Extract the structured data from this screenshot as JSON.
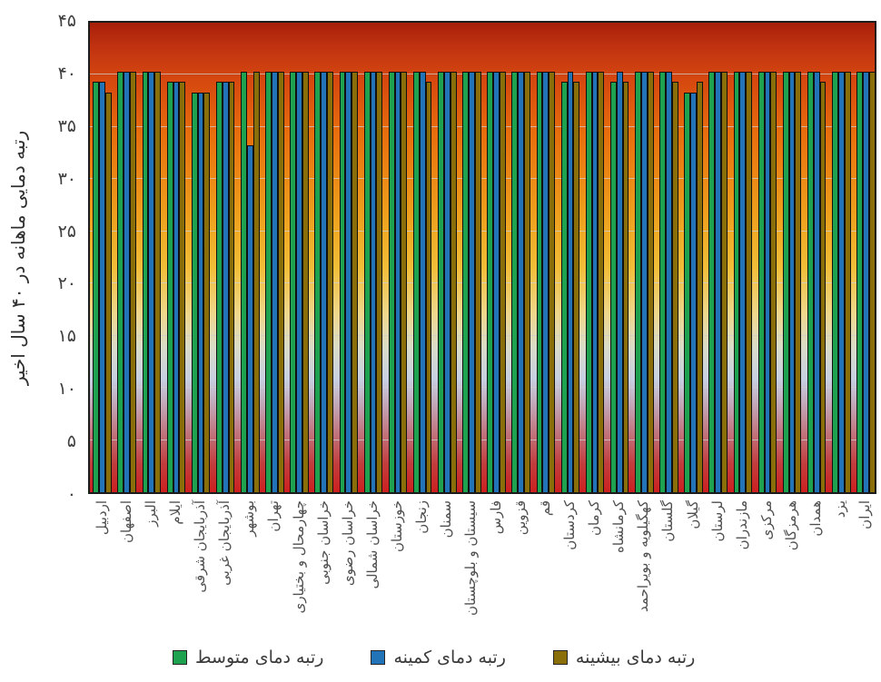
{
  "chart_data": {
    "type": "bar",
    "title": "",
    "xlabel": "",
    "ylabel": "رتبه دمایی ماهانه در ۴۰ سال اخیر",
    "ylim": [
      0,
      45
    ],
    "grid": "horizontal-light-gray",
    "legend_position": "bottom",
    "plot_background": "vertical heat gradient: dark red, orange, yellow, pale yellow, pale blue-gray, mauve, rose, red",
    "background_gradient_stops": [
      "#a81f09",
      "#d5470f",
      "#e86f0d",
      "#eea01d",
      "#f2bd37",
      "#efd78c",
      "#dadcc8",
      "#c7d0e2",
      "#c2a2b2",
      "#c17078",
      "#cd2020"
    ],
    "y_ticks": [
      {
        "value": 45,
        "label": "۴۵"
      },
      {
        "value": 40,
        "label": "۴۰"
      },
      {
        "value": 35,
        "label": "۳۵"
      },
      {
        "value": 30,
        "label": "۳۰"
      },
      {
        "value": 25,
        "label": "۲۵"
      },
      {
        "value": 20,
        "label": "۲۰"
      },
      {
        "value": 15,
        "label": "۱۵"
      },
      {
        "value": 10,
        "label": "۱۰"
      },
      {
        "value": 5,
        "label": "۵"
      },
      {
        "value": 0,
        "label": "۰"
      }
    ],
    "categories": [
      "اردبیل",
      "اصفهان",
      "البرز",
      "ایلام",
      "آذربایجان شرقی",
      "آذربایجان غربی",
      "بوشهر",
      "تهران",
      "چهارمحال و بختیاری",
      "خراسان جنوبی",
      "خراسان رضوی",
      "خراسان شمالی",
      "خوزستان",
      "زنجان",
      "سمنان",
      "سیستان و بلوچستان",
      "فارس",
      "قزوین",
      "قم",
      "کردستان",
      "کرمان",
      "کرمانشاه",
      "کهگیلویه و بویراحمد",
      "گلستان",
      "گیلان",
      "لرستان",
      "مازندران",
      "مرکزی",
      "هرمزگان",
      "همدان",
      "یزد",
      "ایران"
    ],
    "series": [
      {
        "name": "رتبه دمای متوسط",
        "color": "#1fa24f",
        "values": [
          39,
          40,
          40,
          39,
          38,
          39,
          40,
          40,
          40,
          40,
          40,
          40,
          40,
          40,
          40,
          40,
          40,
          40,
          40,
          39,
          40,
          39,
          40,
          40,
          38,
          40,
          40,
          40,
          40,
          40,
          40,
          40
        ]
      },
      {
        "name": "رتبه دمای کمینه",
        "color": "#2273b8",
        "values": [
          39,
          40,
          40,
          39,
          38,
          39,
          33,
          40,
          40,
          40,
          40,
          40,
          40,
          40,
          40,
          40,
          40,
          40,
          40,
          40,
          40,
          40,
          40,
          40,
          38,
          40,
          40,
          40,
          40,
          40,
          40,
          40
        ]
      },
      {
        "name": "رتبه دمای بیشینه",
        "color": "#8a6e0a",
        "values": [
          38,
          40,
          40,
          39,
          38,
          39,
          40,
          40,
          40,
          40,
          40,
          40,
          40,
          39,
          40,
          40,
          40,
          40,
          40,
          39,
          40,
          39,
          40,
          39,
          39,
          40,
          40,
          40,
          40,
          39,
          40,
          40
        ]
      }
    ],
    "legend_display_order_left_to_right": [
      "رتبه دمای متوسط",
      "رتبه دمای کمینه",
      "رتبه دمای بیشینه"
    ]
  },
  "colors": {
    "bar_border": "#101010",
    "plot_border": "#1c1c1c",
    "gridline": "#cdcdcd",
    "tick_text": "#3f3f3f",
    "category_text": "#4f4f4f",
    "legend_text": "#3a3a3a"
  }
}
